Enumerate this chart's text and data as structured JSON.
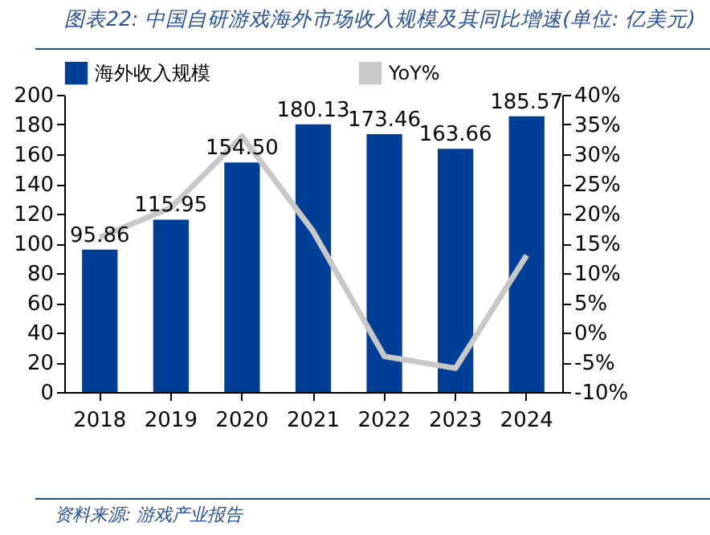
{
  "chart_data": {
    "type": "bar",
    "title": "图表22: 中国自研游戏海外市场收入规模及其同比增速(单位: 亿美元)",
    "annotations": [
      "资料来源: 游戏产业报告"
    ],
    "categories": [
      "2018",
      "2019",
      "2020",
      "2021",
      "2022",
      "2023",
      "2024"
    ],
    "series": [
      {
        "name": "海外收入规模",
        "color": "#003f97",
        "values": [
          95.86,
          115.95,
          154.5,
          180.13,
          173.46,
          163.66,
          185.57
        ],
        "value_labels": [
          "95.86",
          "115.95",
          "154.50",
          "180.13",
          "173.46",
          "163.66",
          "185.57"
        ]
      },
      {
        "name": "YoY%",
        "type": "line",
        "axis": "y2",
        "color": "#c8c8c8",
        "values": [
          16,
          21,
          33,
          17,
          -4,
          -6,
          13
        ]
      }
    ],
    "ylim": [
      0,
      200
    ],
    "yticks": [
      0,
      20,
      40,
      60,
      80,
      100,
      120,
      140,
      160,
      180,
      200
    ],
    "y2lim": [
      -10,
      40
    ],
    "y2ticks": [
      {
        "value": -10,
        "label": "-10%"
      },
      {
        "value": -5,
        "label": "-5%"
      },
      {
        "value": 0,
        "label": "0%"
      },
      {
        "value": 5,
        "label": "5%"
      },
      {
        "value": 10,
        "label": "10%"
      },
      {
        "value": 15,
        "label": "15%"
      },
      {
        "value": 20,
        "label": "20%"
      },
      {
        "value": 25,
        "label": "25%"
      },
      {
        "value": 30,
        "label": "30%"
      },
      {
        "value": 35,
        "label": "35%"
      },
      {
        "value": 40,
        "label": "40%"
      }
    ],
    "legend": "top"
  }
}
